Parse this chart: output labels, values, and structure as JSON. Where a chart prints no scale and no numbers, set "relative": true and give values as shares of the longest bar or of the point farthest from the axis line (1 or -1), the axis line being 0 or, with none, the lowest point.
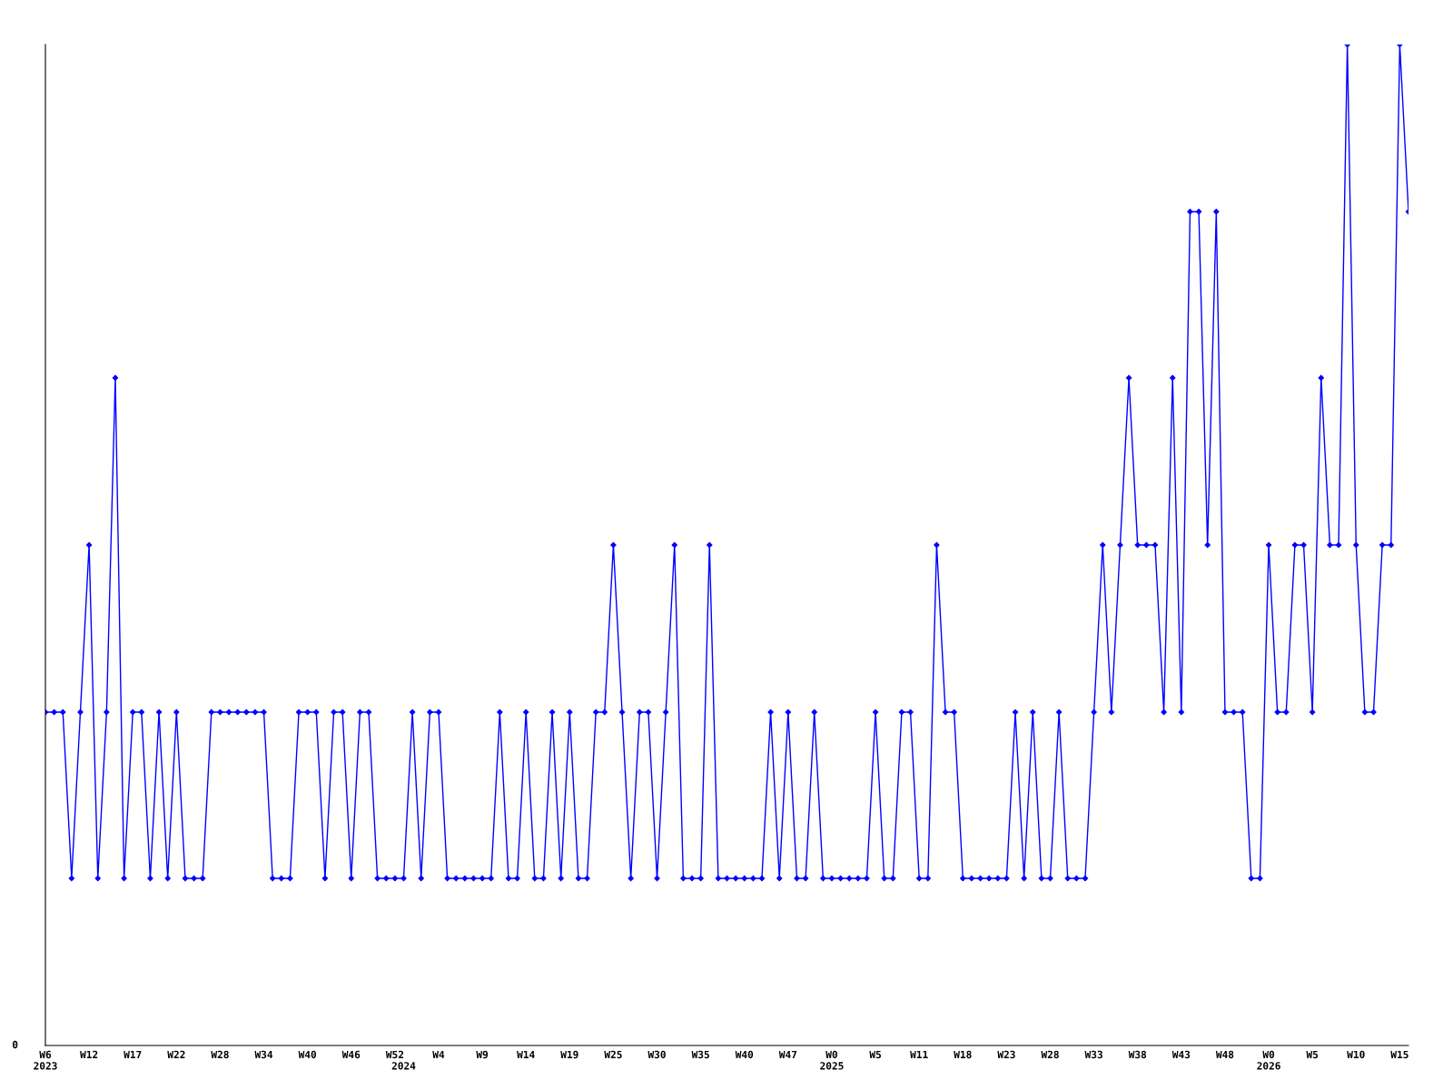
{
  "chart_data": {
    "type": "line",
    "relative": true,
    "color": "#0000ff",
    "marker": "diamond",
    "line_style": "solid",
    "grid": false,
    "legend": false,
    "annotations": [
      "0"
    ],
    "categories": [
      "W6\n2023",
      null,
      null,
      null,
      null,
      "W12",
      null,
      null,
      null,
      null,
      "W17",
      null,
      null,
      null,
      null,
      "W22",
      null,
      null,
      null,
      null,
      "W28",
      null,
      null,
      null,
      null,
      "W34",
      null,
      null,
      null,
      null,
      "W40",
      null,
      null,
      null,
      null,
      "W46",
      null,
      null,
      null,
      null,
      "W52",
      "\n2024",
      null,
      null,
      null,
      "W4",
      null,
      null,
      null,
      null,
      "W9",
      null,
      null,
      null,
      null,
      "W14",
      null,
      null,
      null,
      null,
      "W19",
      null,
      null,
      null,
      null,
      "W25",
      null,
      null,
      null,
      null,
      "W30",
      null,
      null,
      null,
      null,
      "W35",
      null,
      null,
      null,
      null,
      "W40",
      null,
      null,
      null,
      null,
      "W47",
      null,
      null,
      null,
      null,
      "W0\n2025",
      null,
      null,
      null,
      null,
      "W5",
      null,
      null,
      null,
      null,
      "W11",
      null,
      null,
      null,
      null,
      "W18",
      null,
      null,
      null,
      null,
      "W23",
      null,
      null,
      null,
      null,
      "W28",
      null,
      null,
      null,
      null,
      "W33",
      null,
      null,
      null,
      null,
      "W38",
      null,
      null,
      null,
      null,
      "W43",
      null,
      null,
      null,
      null,
      "W48",
      null,
      null,
      null,
      null,
      "W0\n2026",
      null,
      null,
      null,
      null,
      "W5",
      null,
      null,
      null,
      null,
      "W10",
      null,
      null,
      null,
      null,
      "W15",
      null
    ],
    "values": [
      0.333,
      0.333,
      0.333,
      0.167,
      0.333,
      0.5,
      0.167,
      0.333,
      0.667,
      0.167,
      0.333,
      0.333,
      0.167,
      0.333,
      0.167,
      0.333,
      0.167,
      0.167,
      0.167,
      0.333,
      0.333,
      0.333,
      0.333,
      0.333,
      0.333,
      0.333,
      0.167,
      0.167,
      0.167,
      0.333,
      0.333,
      0.333,
      0.167,
      0.333,
      0.333,
      0.167,
      0.333,
      0.333,
      0.167,
      0.167,
      0.167,
      0.167,
      0.333,
      0.167,
      0.333,
      0.333,
      0.167,
      0.167,
      0.167,
      0.167,
      0.167,
      0.167,
      0.333,
      0.167,
      0.167,
      0.333,
      0.167,
      0.167,
      0.333,
      0.167,
      0.333,
      0.167,
      0.167,
      0.333,
      0.333,
      0.5,
      0.333,
      0.167,
      0.333,
      0.333,
      0.167,
      0.333,
      0.5,
      0.167,
      0.167,
      0.167,
      0.5,
      0.167,
      0.167,
      0.167,
      0.167,
      0.167,
      0.167,
      0.333,
      0.167,
      0.333,
      0.167,
      0.167,
      0.333,
      0.167,
      0.167,
      0.167,
      0.167,
      0.167,
      0.167,
      0.333,
      0.167,
      0.167,
      0.333,
      0.333,
      0.167,
      0.167,
      0.5,
      0.333,
      0.333,
      0.167,
      0.167,
      0.167,
      0.167,
      0.167,
      0.167,
      0.333,
      0.167,
      0.333,
      0.167,
      0.167,
      0.333,
      0.167,
      0.167,
      0.167,
      0.333,
      0.5,
      0.333,
      0.5,
      0.667,
      0.5,
      0.5,
      0.5,
      0.333,
      0.667,
      0.333,
      0.833,
      0.833,
      0.5,
      0.833,
      0.333,
      0.333,
      0.333,
      0.167,
      0.167,
      0.5,
      0.333,
      0.333,
      0.5,
      0.5,
      0.333,
      0.667,
      0.5,
      0.5,
      1,
      0.5,
      0.333,
      0.333,
      0.5,
      0.5,
      1,
      0.833
    ]
  }
}
